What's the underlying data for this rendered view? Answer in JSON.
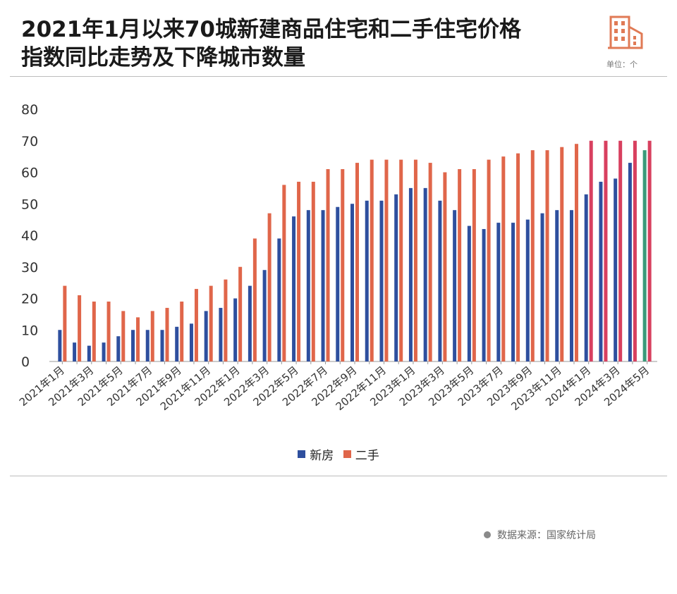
{
  "header": {
    "title_line1": "2021年1月以来70城新建商品住宅和二手住宅价格",
    "title_line2": "指数同比走势及下降城市数量",
    "unit": "单位：个",
    "icon": "building-icon"
  },
  "source": "数据来源：国家统计局",
  "colors": {
    "new_home": "#2e4f9e",
    "second_hand": "#e0664a",
    "highlight_second_hand": "#d8405f",
    "highlight_new_home": "#3a9a7a",
    "icon": "#e07a55"
  },
  "chart_data": {
    "type": "bar",
    "title": "2021年1月以来70城新建商品住宅和二手住宅价格指数同比走势及下降城市数量",
    "ylim": [
      0,
      80
    ],
    "yticks": [
      0,
      10,
      20,
      30,
      40,
      50,
      60,
      70,
      80
    ],
    "grid": false,
    "legend_position": "bottom-center",
    "categories": [
      "2021年1月",
      "2021年2月",
      "2021年3月",
      "2021年4月",
      "2021年5月",
      "2021年6月",
      "2021年7月",
      "2021年8月",
      "2021年9月",
      "2021年10月",
      "2021年11月",
      "2021年12月",
      "2022年1月",
      "2022年2月",
      "2022年3月",
      "2022年4月",
      "2022年5月",
      "2022年6月",
      "2022年7月",
      "2022年8月",
      "2022年9月",
      "2022年10月",
      "2022年11月",
      "2022年12月",
      "2023年1月",
      "2023年2月",
      "2023年3月",
      "2023年4月",
      "2023年5月",
      "2023年6月",
      "2023年7月",
      "2023年8月",
      "2023年9月",
      "2023年10月",
      "2023年11月",
      "2023年12月",
      "2024年1月",
      "2024年2月",
      "2024年3月",
      "2024年4月",
      "2024年5月"
    ],
    "tick_labels": [
      "2021年1月",
      "2021年3月",
      "2021年5月",
      "2021年7月",
      "2021年9月",
      "2021年11月",
      "2022年1月",
      "2022年3月",
      "2022年5月",
      "2022年7月",
      "2022年9月",
      "2022年11月",
      "2023年1月",
      "2023年3月",
      "2023年5月",
      "2023年7月",
      "2023年9月",
      "2023年11月",
      "2024年1月",
      "2024年3月",
      "2024年5月"
    ],
    "series": [
      {
        "name": "新房",
        "values": [
          10,
          6,
          5,
          6,
          8,
          10,
          10,
          10,
          11,
          12,
          16,
          17,
          20,
          24,
          29,
          39,
          46,
          48,
          48,
          49,
          50,
          51,
          51,
          53,
          55,
          55,
          51,
          48,
          43,
          42,
          44,
          44,
          45,
          47,
          48,
          48,
          53,
          57,
          58,
          63,
          67
        ]
      },
      {
        "name": "二手",
        "values": [
          24,
          21,
          19,
          19,
          16,
          14,
          16,
          17,
          19,
          23,
          24,
          26,
          30,
          39,
          47,
          56,
          57,
          57,
          61,
          61,
          63,
          64,
          64,
          64,
          64,
          63,
          60,
          61,
          61,
          64,
          65,
          66,
          67,
          67,
          68,
          69,
          70,
          70,
          70,
          70,
          70
        ]
      }
    ]
  }
}
